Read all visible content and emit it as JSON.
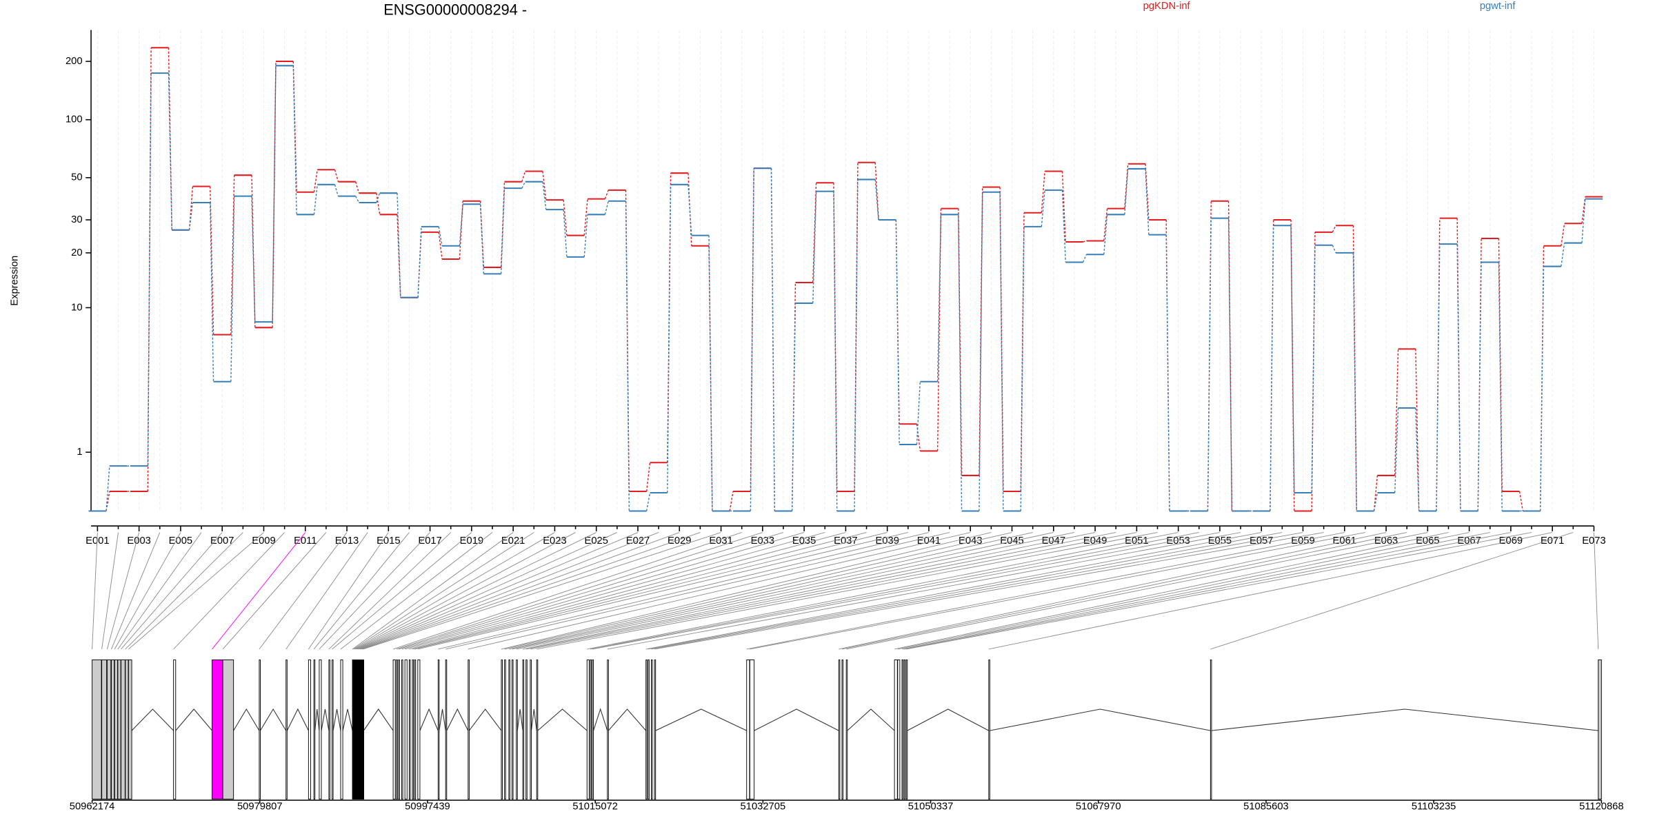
{
  "chart_data": [
    {
      "type": "step-line",
      "title": "ENSG00000008294 -",
      "y_label": "Expression",
      "yscale": "log10(x+1)",
      "ylim": [
        0,
        290
      ],
      "yticks": [
        1,
        10,
        20,
        30,
        50,
        100,
        200
      ],
      "grid": true,
      "legend": "top-right",
      "categories": [
        "E001",
        null,
        "E003",
        null,
        "E005",
        null,
        "E007",
        null,
        "E009",
        null,
        "E011",
        null,
        "E013",
        null,
        "E015",
        null,
        "E017",
        null,
        "E019",
        null,
        "E021",
        null,
        "E023",
        null,
        "E025",
        null,
        "E027",
        null,
        "E029",
        null,
        "E031",
        null,
        "E033",
        null,
        "E035",
        null,
        "E037",
        null,
        "E039",
        null,
        "E041",
        null,
        "E043",
        null,
        "E045",
        null,
        "E047",
        null,
        "E049",
        null,
        "E051",
        null,
        "E053",
        null,
        "E055",
        null,
        "E057",
        null,
        "E059",
        null,
        "E061",
        null,
        "E063",
        null,
        "E065",
        null,
        "E067",
        null,
        "E069",
        null,
        "E071",
        null,
        "E073"
      ],
      "series": [
        {
          "name": "pgKDN-inf",
          "color": "#e41a1c",
          "values": [
            0,
            0.26,
            0.26,
            235,
            26.5,
            45,
            7.0,
            51.5,
            7.7,
            200,
            42,
            55,
            47.6,
            41.5,
            32,
            11.4,
            25.8,
            18.5,
            37.7,
            16.7,
            47.6,
            54,
            38.2,
            24.8,
            38.7,
            43,
            0.26,
            0.77,
            52.8,
            21.8,
            0,
            0.26,
            56,
            0,
            13.8,
            47,
            0.26,
            60,
            30,
            1.79,
            1.03,
            34.4,
            0.52,
            44.6,
            0.26,
            32.7,
            54,
            22.9,
            23.2,
            34.4,
            59,
            30,
            0,
            0,
            37.7,
            0,
            0,
            30,
            0,
            25.8,
            28,
            0,
            0.52,
            5.76,
            0,
            30.6,
            0,
            23.9,
            0.26,
            0,
            21.8,
            28.7,
            39.7
          ]
        },
        {
          "name": "pgwt-inf",
          "color": "#377eb8",
          "values": [
            0,
            0.7,
            0.7,
            174,
            26.5,
            37,
            3.6,
            40,
            8.3,
            190,
            32,
            46,
            40,
            37,
            41.5,
            11.4,
            27.6,
            21.8,
            36.3,
            15.4,
            44,
            47.6,
            34,
            19,
            32,
            37.7,
            0,
            0.24,
            46,
            24.8,
            0,
            0,
            56,
            0,
            10.6,
            42.4,
            0,
            48.9,
            30,
            1.19,
            3.6,
            32,
            0,
            42,
            0,
            27.6,
            43,
            17.8,
            19.6,
            32,
            55.6,
            25,
            0,
            0,
            30.6,
            0,
            0,
            28,
            0.24,
            22,
            20,
            0,
            0.24,
            2.37,
            0,
            22.3,
            0,
            17.8,
            0,
            0,
            16.9,
            22.6,
            38.7
          ]
        }
      ]
    },
    {
      "type": "gene-model",
      "xlim": [
        50962174,
        51120868
      ],
      "xticks": [
        50962174,
        50979807,
        50997439,
        51015072,
        51032705,
        51050337,
        51067970,
        51085603,
        51103235,
        51120868
      ],
      "exon_fill": "#ffffff",
      "shaded_color": "#cccccc",
      "shaded": [
        0,
        1,
        2,
        3,
        4,
        5,
        6,
        7,
        8,
        11,
        72
      ],
      "highlight_color": "#ff00ff",
      "highlight": 10,
      "exon_starts": [
        50962174,
        50963188,
        50963751,
        50964201,
        50964539,
        50964877,
        50965215,
        50965666,
        50966003,
        50970734,
        50974789,
        50975915,
        50979744,
        50982560,
        50984925,
        50985488,
        50986052,
        50987065,
        50987403,
        50988304,
        50989543,
        50989656,
        50989768,
        50989881,
        50989994,
        50990106,
        50990219,
        50990332,
        50990444,
        50990557,
        50990670,
        50993823,
        50994161,
        50994386,
        50994724,
        50995062,
        50995512,
        50995850,
        50996076,
        50996414,
        50998553,
        50999342,
        51001707,
        51005199,
        51005537,
        51005987,
        51006325,
        51006775,
        51007451,
        51007789,
        51008240,
        51008915,
        51014209,
        51014547,
        51014772,
        51016349,
        51020404,
        51020629,
        51020967,
        51021305,
        51030991,
        51031329,
        51040677,
        51041015,
        51041466,
        51046534,
        51046872,
        51047322,
        51047548,
        51047773,
        51056445,
        51079760,
        51120532
      ],
      "exon_ends": [
        50963150,
        50963700,
        50964150,
        50964500,
        50964850,
        50965190,
        50965640,
        50965980,
        50966341,
        50970959,
        50975915,
        50977041,
        50979857,
        50982673,
        50985150,
        50985601,
        50986277,
        50987178,
        50987516,
        50988529,
        50989603,
        50989716,
        50989828,
        50989941,
        50990054,
        50990166,
        50990279,
        50990392,
        50990504,
        50990617,
        50990730,
        50994048,
        50994274,
        50994499,
        50994837,
        50995287,
        50995625,
        50995963,
        50996189,
        50996639,
        50998666,
        50999455,
        51001820,
        51005312,
        51005650,
        51006100,
        51006438,
        51006888,
        51007564,
        51007902,
        51008353,
        51009028,
        51014434,
        51014660,
        51014885,
        51016462,
        51020517,
        51020742,
        51021080,
        51021418,
        51031300,
        51031780,
        51040790,
        51041128,
        51041579,
        51046840,
        51047097,
        51047435,
        51047661,
        51047886,
        51056558,
        51079873,
        51120868
      ]
    }
  ]
}
